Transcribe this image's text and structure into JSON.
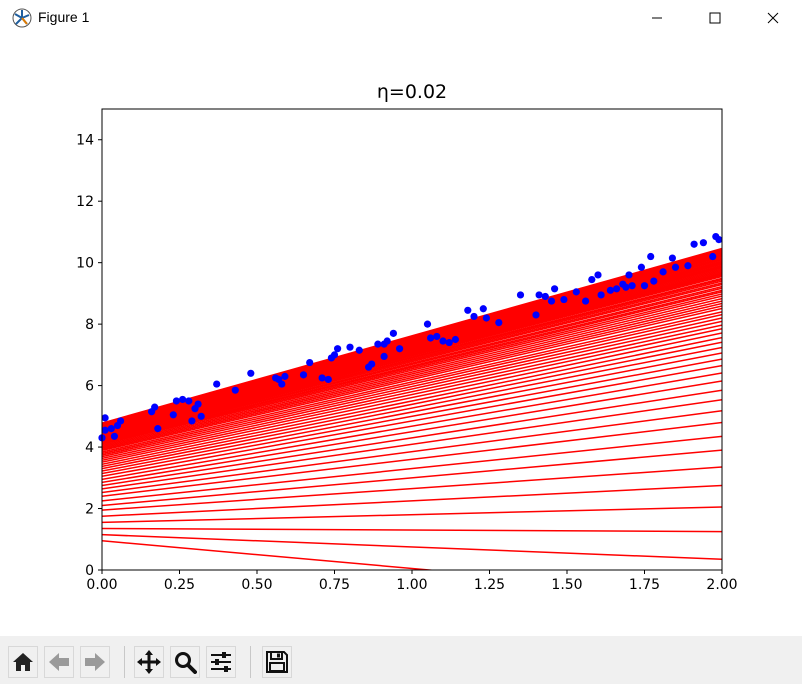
{
  "window": {
    "title": "Figure 1",
    "app_icon": "matplotlib-icon",
    "controls": [
      "minimize-icon",
      "maximize-icon",
      "close-icon"
    ]
  },
  "toolbar": {
    "buttons": [
      {
        "name": "home-button",
        "icon": "home-icon"
      },
      {
        "name": "back-button",
        "icon": "arrow-left-icon"
      },
      {
        "name": "forward-button",
        "icon": "arrow-right-icon"
      },
      {
        "name": "pan-button",
        "icon": "move-icon"
      },
      {
        "name": "zoom-button",
        "icon": "magnifier-icon"
      },
      {
        "name": "configure-subplots-button",
        "icon": "sliders-icon"
      },
      {
        "name": "save-button",
        "icon": "floppy-disk-icon"
      }
    ]
  },
  "chart_data": {
    "type": "scatter",
    "title": "η=0.02",
    "xlabel": "",
    "ylabel": "",
    "xlim": [
      0,
      2
    ],
    "ylim": [
      0,
      15
    ],
    "x_ticks": [
      "0.00",
      "0.25",
      "0.50",
      "0.75",
      "1.00",
      "1.25",
      "1.50",
      "1.75",
      "2.00"
    ],
    "y_ticks": [
      "0",
      "2",
      "4",
      "6",
      "8",
      "10",
      "12",
      "14"
    ],
    "grid": false,
    "legend": "none",
    "series": [
      {
        "kind": "scatter",
        "color": "#0000ff",
        "points": [
          [
            0.0,
            4.3
          ],
          [
            0.01,
            4.95
          ],
          [
            0.01,
            4.55
          ],
          [
            0.03,
            4.6
          ],
          [
            0.04,
            4.35
          ],
          [
            0.05,
            4.7
          ],
          [
            0.06,
            4.85
          ],
          [
            0.16,
            5.15
          ],
          [
            0.17,
            5.3
          ],
          [
            0.18,
            4.6
          ],
          [
            0.23,
            5.05
          ],
          [
            0.24,
            5.5
          ],
          [
            0.26,
            5.55
          ],
          [
            0.28,
            5.5
          ],
          [
            0.29,
            4.85
          ],
          [
            0.3,
            5.25
          ],
          [
            0.31,
            5.4
          ],
          [
            0.32,
            5.0
          ],
          [
            0.37,
            6.05
          ],
          [
            0.43,
            5.85
          ],
          [
            0.48,
            6.4
          ],
          [
            0.56,
            6.25
          ],
          [
            0.57,
            6.2
          ],
          [
            0.58,
            6.05
          ],
          [
            0.59,
            6.3
          ],
          [
            0.65,
            6.35
          ],
          [
            0.67,
            6.75
          ],
          [
            0.71,
            6.25
          ],
          [
            0.73,
            6.2
          ],
          [
            0.74,
            6.9
          ],
          [
            0.75,
            7.0
          ],
          [
            0.76,
            7.2
          ],
          [
            0.8,
            7.25
          ],
          [
            0.83,
            7.15
          ],
          [
            0.86,
            6.6
          ],
          [
            0.87,
            6.7
          ],
          [
            0.89,
            7.35
          ],
          [
            0.91,
            7.35
          ],
          [
            0.91,
            6.95
          ],
          [
            0.92,
            7.45
          ],
          [
            0.94,
            7.7
          ],
          [
            0.96,
            7.2
          ],
          [
            1.05,
            8.0
          ],
          [
            1.06,
            7.55
          ],
          [
            1.08,
            7.6
          ],
          [
            1.1,
            7.45
          ],
          [
            1.12,
            7.4
          ],
          [
            1.14,
            7.5
          ],
          [
            1.18,
            8.45
          ],
          [
            1.2,
            8.25
          ],
          [
            1.23,
            8.5
          ],
          [
            1.24,
            8.2
          ],
          [
            1.28,
            8.05
          ],
          [
            1.35,
            8.95
          ],
          [
            1.4,
            8.3
          ],
          [
            1.41,
            8.95
          ],
          [
            1.43,
            8.9
          ],
          [
            1.45,
            8.75
          ],
          [
            1.46,
            9.15
          ],
          [
            1.49,
            8.8
          ],
          [
            1.53,
            9.05
          ],
          [
            1.56,
            8.75
          ],
          [
            1.58,
            9.45
          ],
          [
            1.6,
            9.6
          ],
          [
            1.61,
            8.95
          ],
          [
            1.64,
            9.1
          ],
          [
            1.66,
            9.15
          ],
          [
            1.68,
            9.3
          ],
          [
            1.69,
            9.2
          ],
          [
            1.7,
            9.6
          ],
          [
            1.71,
            9.25
          ],
          [
            1.74,
            9.85
          ],
          [
            1.75,
            9.25
          ],
          [
            1.77,
            10.2
          ],
          [
            1.78,
            9.4
          ],
          [
            1.81,
            9.7
          ],
          [
            1.84,
            10.15
          ],
          [
            1.85,
            9.85
          ],
          [
            1.89,
            9.9
          ],
          [
            1.91,
            10.6
          ],
          [
            1.94,
            10.65
          ],
          [
            1.97,
            10.2
          ],
          [
            1.98,
            10.85
          ],
          [
            1.99,
            10.75
          ]
        ]
      },
      {
        "kind": "lines",
        "color": "#ff0000",
        "description_of_values": "intercept, slope pairs of gradient-descent iterations",
        "lines": [
          [
            0.95,
            -0.9
          ],
          [
            1.15,
            -0.4
          ],
          [
            1.35,
            -0.05
          ],
          [
            1.55,
            0.25
          ],
          [
            1.75,
            0.5
          ],
          [
            1.95,
            0.7
          ],
          [
            2.1,
            0.9
          ],
          [
            2.25,
            1.05
          ],
          [
            2.4,
            1.2
          ],
          [
            2.52,
            1.33
          ],
          [
            2.64,
            1.45
          ],
          [
            2.75,
            1.55
          ],
          [
            2.85,
            1.65
          ],
          [
            2.95,
            1.73
          ],
          [
            3.05,
            1.8
          ],
          [
            3.14,
            1.86
          ],
          [
            3.22,
            1.92
          ],
          [
            3.3,
            1.97
          ],
          [
            3.37,
            2.02
          ],
          [
            3.44,
            2.06
          ],
          [
            3.51,
            2.1
          ],
          [
            3.57,
            2.14
          ],
          [
            3.63,
            2.17
          ],
          [
            3.69,
            2.2
          ],
          [
            3.74,
            2.23
          ],
          [
            3.79,
            2.26
          ],
          [
            3.84,
            2.28
          ],
          [
            3.89,
            2.31
          ],
          [
            3.93,
            2.33
          ],
          [
            3.97,
            2.35
          ],
          [
            4.01,
            2.37
          ],
          [
            4.05,
            2.39
          ],
          [
            4.09,
            2.41
          ],
          [
            4.12,
            2.43
          ],
          [
            4.15,
            2.45
          ],
          [
            4.18,
            2.46
          ],
          [
            4.21,
            2.48
          ],
          [
            4.24,
            2.49
          ],
          [
            4.27,
            2.51
          ],
          [
            4.3,
            2.52
          ],
          [
            4.32,
            2.54
          ],
          [
            4.35,
            2.55
          ],
          [
            4.37,
            2.56
          ],
          [
            4.39,
            2.58
          ],
          [
            4.41,
            2.59
          ],
          [
            4.43,
            2.6
          ],
          [
            4.45,
            2.61
          ],
          [
            4.47,
            2.62
          ],
          [
            4.49,
            2.63
          ],
          [
            4.51,
            2.64
          ],
          [
            4.53,
            2.65
          ],
          [
            4.55,
            2.66
          ],
          [
            4.57,
            2.67
          ],
          [
            4.59,
            2.68
          ],
          [
            4.6,
            2.69
          ],
          [
            4.62,
            2.7
          ],
          [
            4.63,
            2.71
          ],
          [
            4.65,
            2.72
          ],
          [
            4.66,
            2.73
          ],
          [
            4.67,
            2.74
          ],
          [
            4.69,
            2.75
          ],
          [
            4.7,
            2.76
          ],
          [
            4.71,
            2.77
          ],
          [
            4.72,
            2.78
          ],
          [
            4.73,
            2.79
          ],
          [
            4.74,
            2.8
          ],
          [
            4.75,
            2.81
          ],
          [
            4.76,
            2.82
          ],
          [
            4.77,
            2.83
          ],
          [
            4.78,
            2.84
          ]
        ]
      }
    ]
  }
}
